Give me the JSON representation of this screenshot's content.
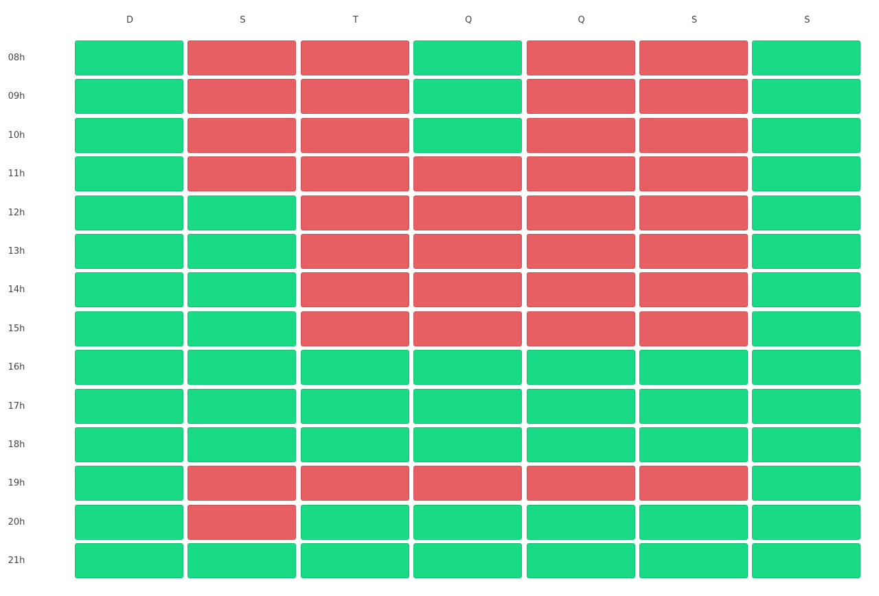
{
  "days": [
    "D",
    "S",
    "T",
    "Q",
    "Q",
    "S",
    "S"
  ],
  "hours": [
    "08h",
    "09h",
    "10h",
    "11h",
    "12h",
    "13h",
    "14h",
    "15h",
    "16h",
    "17h",
    "18h",
    "19h",
    "20h",
    "21h"
  ],
  "colors": {
    "available": "#19db86",
    "busy": "#e85f63"
  },
  "availability": [
    [
      "available",
      "busy",
      "busy",
      "available",
      "busy",
      "busy",
      "available"
    ],
    [
      "available",
      "busy",
      "busy",
      "available",
      "busy",
      "busy",
      "available"
    ],
    [
      "available",
      "busy",
      "busy",
      "available",
      "busy",
      "busy",
      "available"
    ],
    [
      "available",
      "busy",
      "busy",
      "busy",
      "busy",
      "busy",
      "available"
    ],
    [
      "available",
      "available",
      "busy",
      "busy",
      "busy",
      "busy",
      "available"
    ],
    [
      "available",
      "available",
      "busy",
      "busy",
      "busy",
      "busy",
      "available"
    ],
    [
      "available",
      "available",
      "busy",
      "busy",
      "busy",
      "busy",
      "available"
    ],
    [
      "available",
      "available",
      "busy",
      "busy",
      "busy",
      "busy",
      "available"
    ],
    [
      "available",
      "available",
      "available",
      "available",
      "available",
      "available",
      "available"
    ],
    [
      "available",
      "available",
      "available",
      "available",
      "available",
      "available",
      "available"
    ],
    [
      "available",
      "available",
      "available",
      "available",
      "available",
      "available",
      "available"
    ],
    [
      "available",
      "busy",
      "busy",
      "busy",
      "busy",
      "busy",
      "available"
    ],
    [
      "available",
      "busy",
      "available",
      "available",
      "available",
      "available",
      "available"
    ],
    [
      "available",
      "available",
      "available",
      "available",
      "available",
      "available",
      "available"
    ]
  ]
}
